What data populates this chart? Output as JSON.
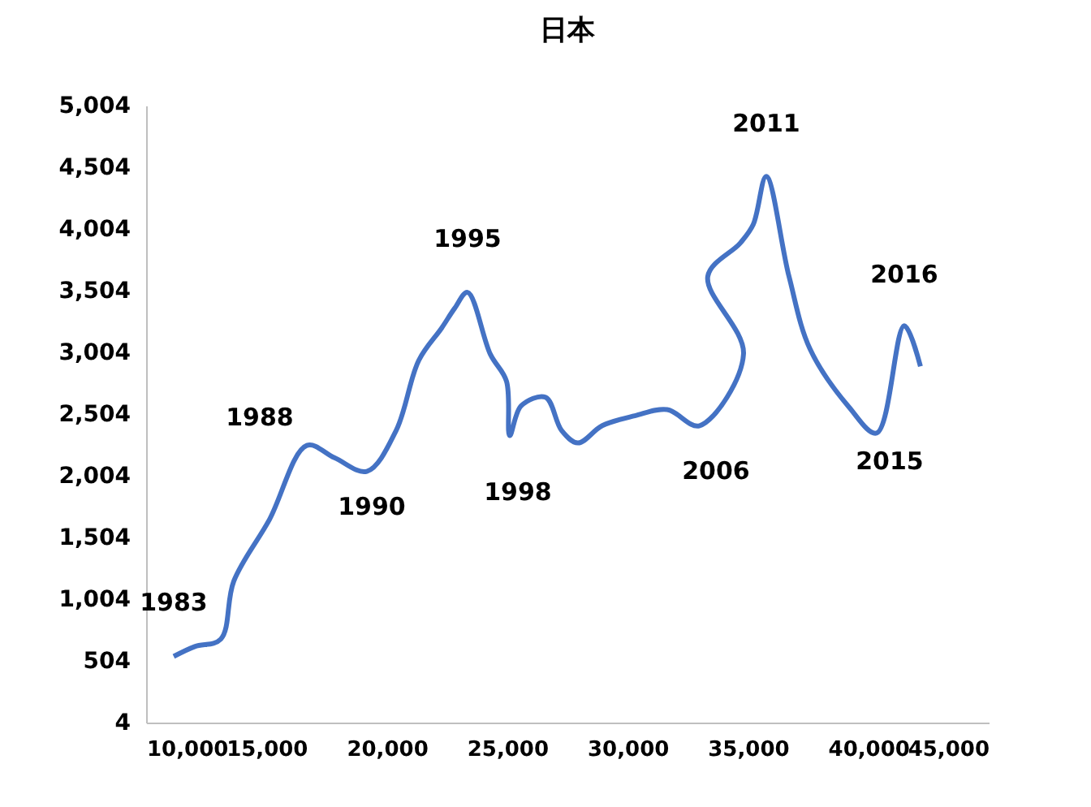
{
  "chart_data": {
    "type": "line",
    "title": "日本",
    "xlim": [
      10000,
      45000
    ],
    "xticks": [
      {
        "value": 10000,
        "label": "10,000"
      },
      {
        "value": 15000,
        "label": "15,000"
      },
      {
        "value": 20000,
        "label": "20,000"
      },
      {
        "value": 25000,
        "label": "25,000"
      },
      {
        "value": 30000,
        "label": "30,000"
      },
      {
        "value": 35000,
        "label": "35,000"
      },
      {
        "value": 40000,
        "label": "40,000"
      },
      {
        "value": 45000,
        "label": "45,000"
      }
    ],
    "ylim": [
      4,
      5004
    ],
    "yticks": [
      4,
      {
        "value": 504,
        "label": "504"
      },
      {
        "value": 1004,
        "label": "1,004"
      },
      {
        "value": 1504,
        "label": "1,504"
      },
      {
        "value": 2004,
        "label": "2,004"
      },
      {
        "value": 2504,
        "label": "2,504"
      },
      {
        "value": 3004,
        "label": "3,004"
      },
      {
        "value": 3504,
        "label": "3,504"
      },
      {
        "value": 4004,
        "label": "4,004"
      },
      {
        "value": 4504,
        "label": "4,504"
      },
      {
        "value": 5004,
        "label": "5,004"
      }
    ],
    "grid": false,
    "marker": "none",
    "line_style": "solid",
    "series": [
      {
        "color": "#4472c4",
        "x": [
          11146,
          12023,
          13102,
          13641,
          15125,
          16676,
          17822,
          19171,
          20384,
          21328,
          22272,
          22812,
          23351,
          24295,
          24970,
          25104,
          25576,
          26588,
          27262,
          27937,
          28948,
          30297,
          31645,
          32994,
          34815,
          33331,
          34680,
          35219,
          35759,
          36703,
          37580,
          39198,
          40344,
          41490,
          42164
        ],
        "values": [
          540,
          620,
          680,
          1150,
          1650,
          2250,
          2150,
          2040,
          2370,
          2940,
          3200,
          3360,
          3490,
          2990,
          2770,
          2330,
          2570,
          2640,
          2370,
          2270,
          2410,
          2490,
          2540,
          2410,
          2990,
          3620,
          3890,
          4040,
          4430,
          3620,
          3030,
          2560,
          2350,
          3220,
          2890
        ]
      }
    ],
    "annotations": [
      {
        "text": "1983",
        "x": 11146,
        "y": 543
      },
      {
        "text": "1988",
        "x": 16676,
        "y": 2254
      },
      {
        "text": "1990",
        "x": 19171,
        "y": 2043
      },
      {
        "text": "1995",
        "x": 23351,
        "y": 3491
      },
      {
        "text": "1998",
        "x": 25104,
        "y": 2333
      },
      {
        "text": "2006",
        "x": 32994,
        "y": 2412
      },
      {
        "text": "2011",
        "x": 35759,
        "y": 4425
      },
      {
        "text": "2015",
        "x": 40344,
        "y": 2346
      },
      {
        "text": "2016",
        "x": 41490,
        "y": 3215
      }
    ]
  }
}
